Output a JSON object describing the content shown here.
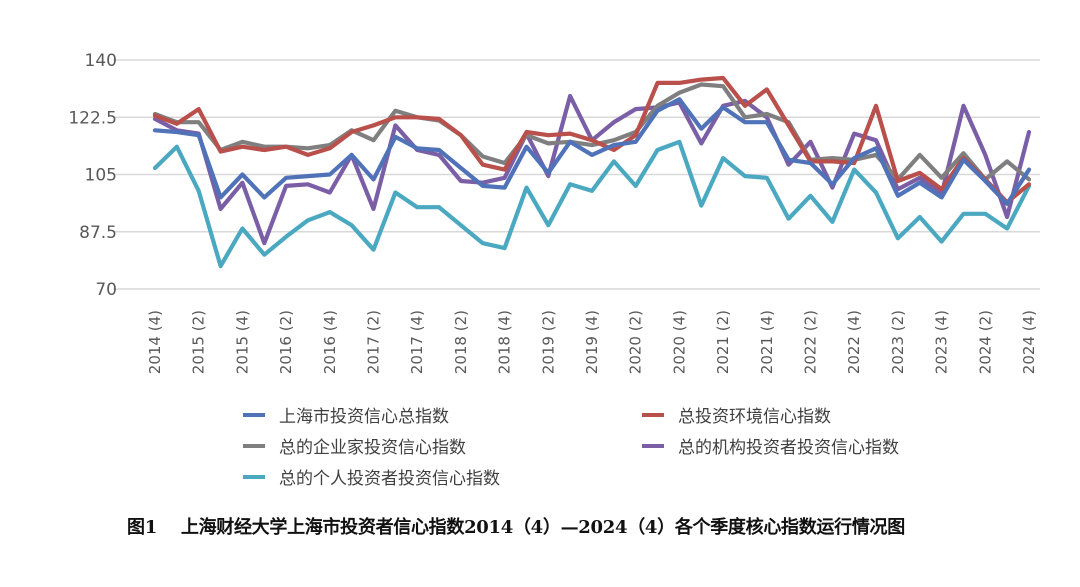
{
  "chart_data": {
    "type": "line",
    "title": "",
    "xlabel": "",
    "ylabel": "",
    "ylim": [
      70,
      140
    ],
    "yticks": [
      "140",
      "122.5",
      "105",
      "87.5",
      "70"
    ],
    "ytick_values": [
      140,
      122.5,
      105,
      87.5,
      70
    ],
    "grid": true,
    "legend_position": "bottom",
    "x": [
      "2014 (4)",
      "2015 (1)",
      "2015 (2)",
      "2015 (3)",
      "2015 (4)",
      "2016 (1)",
      "2016 (2)",
      "2016 (3)",
      "2016 (4)",
      "2017 (1)",
      "2017 (2)",
      "2017 (3)",
      "2017 (4)",
      "2018 (1)",
      "2018 (2)",
      "2018 (3)",
      "2018 (4)",
      "2019 (1)",
      "2019 (2)",
      "2019 (3)",
      "2019 (4)",
      "2020 (1)",
      "2020 (2)",
      "2020 (3)",
      "2020 (4)",
      "2021 (1)",
      "2021 (2)",
      "2021 (3)",
      "2021 (4)",
      "2022 (1)",
      "2022 (2)",
      "2022 (3)",
      "2022 (4)",
      "2023 (1)",
      "2023 (2)",
      "2023 (3)",
      "2023 (4)",
      "2024 (1)",
      "2024 (2)",
      "2024 (3)",
      "2024 (4)"
    ],
    "xtick_labels": [
      "2014 (4)",
      "2015 (2)",
      "2015 (4)",
      "2016 (2)",
      "2016 (4)",
      "2017 (2)",
      "2017 (4)",
      "2018 (2)",
      "2018 (4)",
      "2019 (2)",
      "2019 (4)",
      "2020 (2)",
      "2020 (4)",
      "2021 (2)",
      "2021 (4)",
      "2022 (2)",
      "2022 (4)",
      "2023 (2)",
      "2023 (4)",
      "2024 (2)",
      "2024 (4)"
    ],
    "series": [
      {
        "name": "上海市投资信心总指数",
        "color": "#4f72b8",
        "values": [
          118.5,
          118,
          117,
          98,
          105,
          98,
          104,
          104.5,
          105,
          111,
          103.5,
          116.5,
          113,
          112.5,
          107,
          101.5,
          101,
          113.5,
          105.5,
          115,
          111,
          114,
          115,
          124.5,
          128,
          119,
          125.5,
          121,
          121,
          109.5,
          108.5,
          102,
          110,
          113,
          98.5,
          102.5,
          98,
          109.5,
          103,
          96,
          106.5
        ]
      },
      {
        "name": "总投资环境信心指数",
        "color": "#b9504b",
        "values": [
          123,
          120.5,
          125,
          112,
          113.5,
          112.5,
          113.5,
          111,
          113,
          118,
          120,
          122.5,
          122.5,
          122,
          117,
          108,
          106.5,
          118,
          117,
          117.5,
          115.5,
          112.5,
          117,
          133,
          133,
          134,
          134.5,
          126,
          131,
          120,
          109,
          109,
          108.5,
          126,
          103,
          105.5,
          100.5,
          110,
          103.5,
          96.5,
          102
        ]
      },
      {
        "name": "总的企业家投资信心指数",
        "color": "#7f7f7f",
        "values": [
          123.5,
          121,
          121,
          112.5,
          115,
          113.5,
          113.5,
          113,
          114,
          118.5,
          115.5,
          124.5,
          122.5,
          121.5,
          117,
          110.5,
          108.5,
          117,
          114.5,
          115,
          114,
          115.5,
          118,
          126,
          130,
          132.5,
          132,
          122.5,
          123.5,
          121,
          109.5,
          110,
          109.5,
          111,
          103.5,
          111,
          104,
          111.5,
          103.5,
          109,
          103.5
        ]
      },
      {
        "name": "总的机构投资者投资信心指数",
        "color": "#7a5ea6",
        "values": [
          122,
          118.5,
          117.5,
          94.5,
          102.5,
          84,
          101.5,
          102,
          99.5,
          111,
          94.5,
          120,
          112.5,
          111,
          103,
          102.5,
          104,
          117.5,
          104.5,
          129,
          115.5,
          121,
          125,
          125.5,
          127,
          114.5,
          126,
          127.5,
          122.5,
          108,
          115,
          101,
          117.5,
          115.5,
          100.5,
          104,
          99,
          126,
          111,
          92,
          118
        ]
      },
      {
        "name": "总的个人投资者投资信心指数",
        "color": "#4ba8c1",
        "values": [
          107,
          113.5,
          100,
          77,
          88.5,
          80.5,
          86,
          91,
          93.5,
          89.5,
          82,
          99.5,
          95,
          95,
          89.5,
          84,
          82.5,
          101,
          89.5,
          102,
          100,
          109,
          101.5,
          112.5,
          115,
          95.5,
          110,
          104.5,
          104,
          91.5,
          98.5,
          90.5,
          106.5,
          99.5,
          85.5,
          92,
          84.5,
          93,
          93,
          88.5,
          101.5
        ]
      }
    ]
  },
  "caption": {
    "label": "图1",
    "text": "上海财经大学上海市投资者信心指数2014（4）—2024（4）各个季度核心指数运行情况图"
  }
}
